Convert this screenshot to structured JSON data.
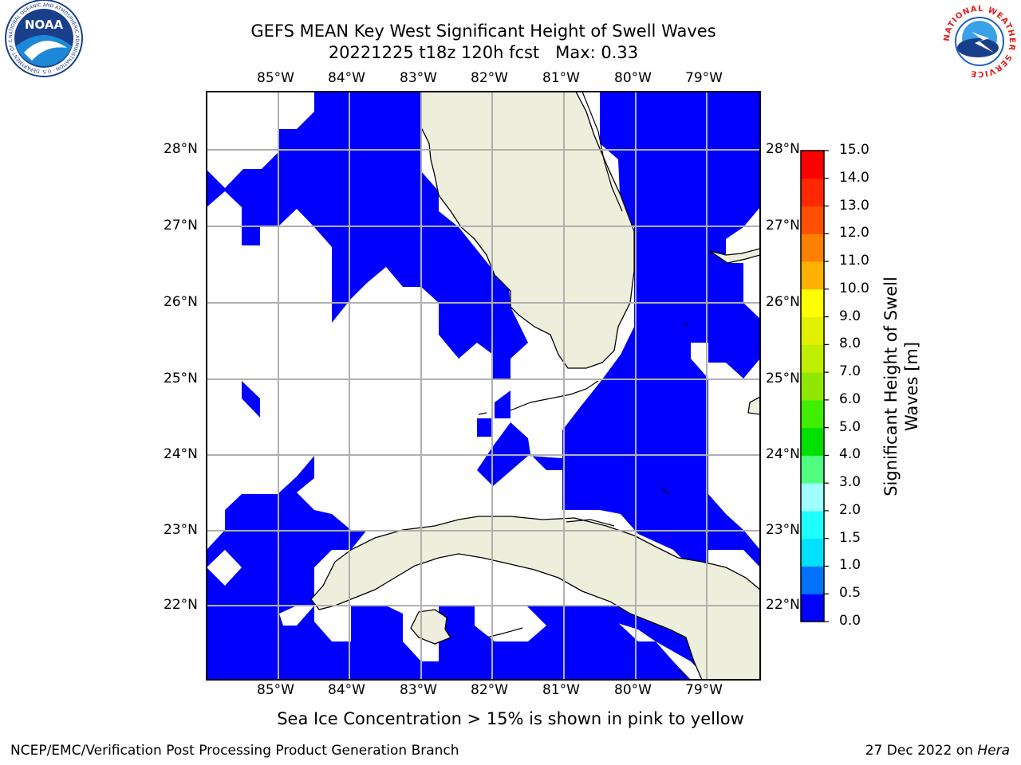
{
  "header": {
    "title_line1": "GEFS MEAN Key West Significant Height of Swell Waves",
    "title_line2": "20221225 t18z 120h fcst   Max: 0.33"
  },
  "logos": {
    "left": {
      "name": "noaa-logo",
      "text": "NOAA",
      "ring_text": "NATIONAL OCEANIC AND ATMOSPHERIC ADMINISTRATION · U.S. DEPARTMENT OF COMMERCE"
    },
    "right": {
      "name": "nws-logo",
      "ring_text": "NATIONAL WEATHER SERVICE"
    }
  },
  "map": {
    "lon_range": [
      -86.0,
      -78.25
    ],
    "lat_range": [
      21.0,
      28.75
    ],
    "lon_ticks": [
      "85°W",
      "84°W",
      "83°W",
      "82°W",
      "81°W",
      "80°W",
      "79°W"
    ],
    "lat_ticks": [
      "28°N",
      "27°N",
      "26°N",
      "25°N",
      "24°N",
      "23°N",
      "22°N"
    ],
    "grid": true,
    "field_color": "#0000ff",
    "land_color": "#eeeedc"
  },
  "colorbar": {
    "label": "Significant Height of Swell Waves [m]",
    "label_line1": "Significant Height of Swell",
    "label_line2": "Waves [m]",
    "levels": [
      "0.0",
      "0.5",
      "1.0",
      "1.5",
      "2.0",
      "3.0",
      "4.0",
      "5.0",
      "6.0",
      "7.0",
      "8.0",
      "9.0",
      "10.0",
      "11.0",
      "12.0",
      "13.0",
      "14.0",
      "15.0"
    ],
    "colors": [
      "#0000ff",
      "#0070ff",
      "#00e0ff",
      "#20ffff",
      "#60ffff",
      "#a0ffff",
      "#50ff80",
      "#00e000",
      "#40ee00",
      "#90e600",
      "#c0ee00",
      "#e0f000",
      "#ffff00",
      "#ffd000",
      "#ffb000",
      "#ff8000",
      "#ff5000",
      "#ff2800",
      "#ff0000"
    ]
  },
  "footer": {
    "note": "Sea Ice Concentration > 15% is shown in pink to yellow",
    "credit": "NCEP/EMC/Verification Post Processing Product Generation Branch",
    "date": "27 Dec 2022",
    "on_word": "on",
    "machine": "Hera"
  }
}
